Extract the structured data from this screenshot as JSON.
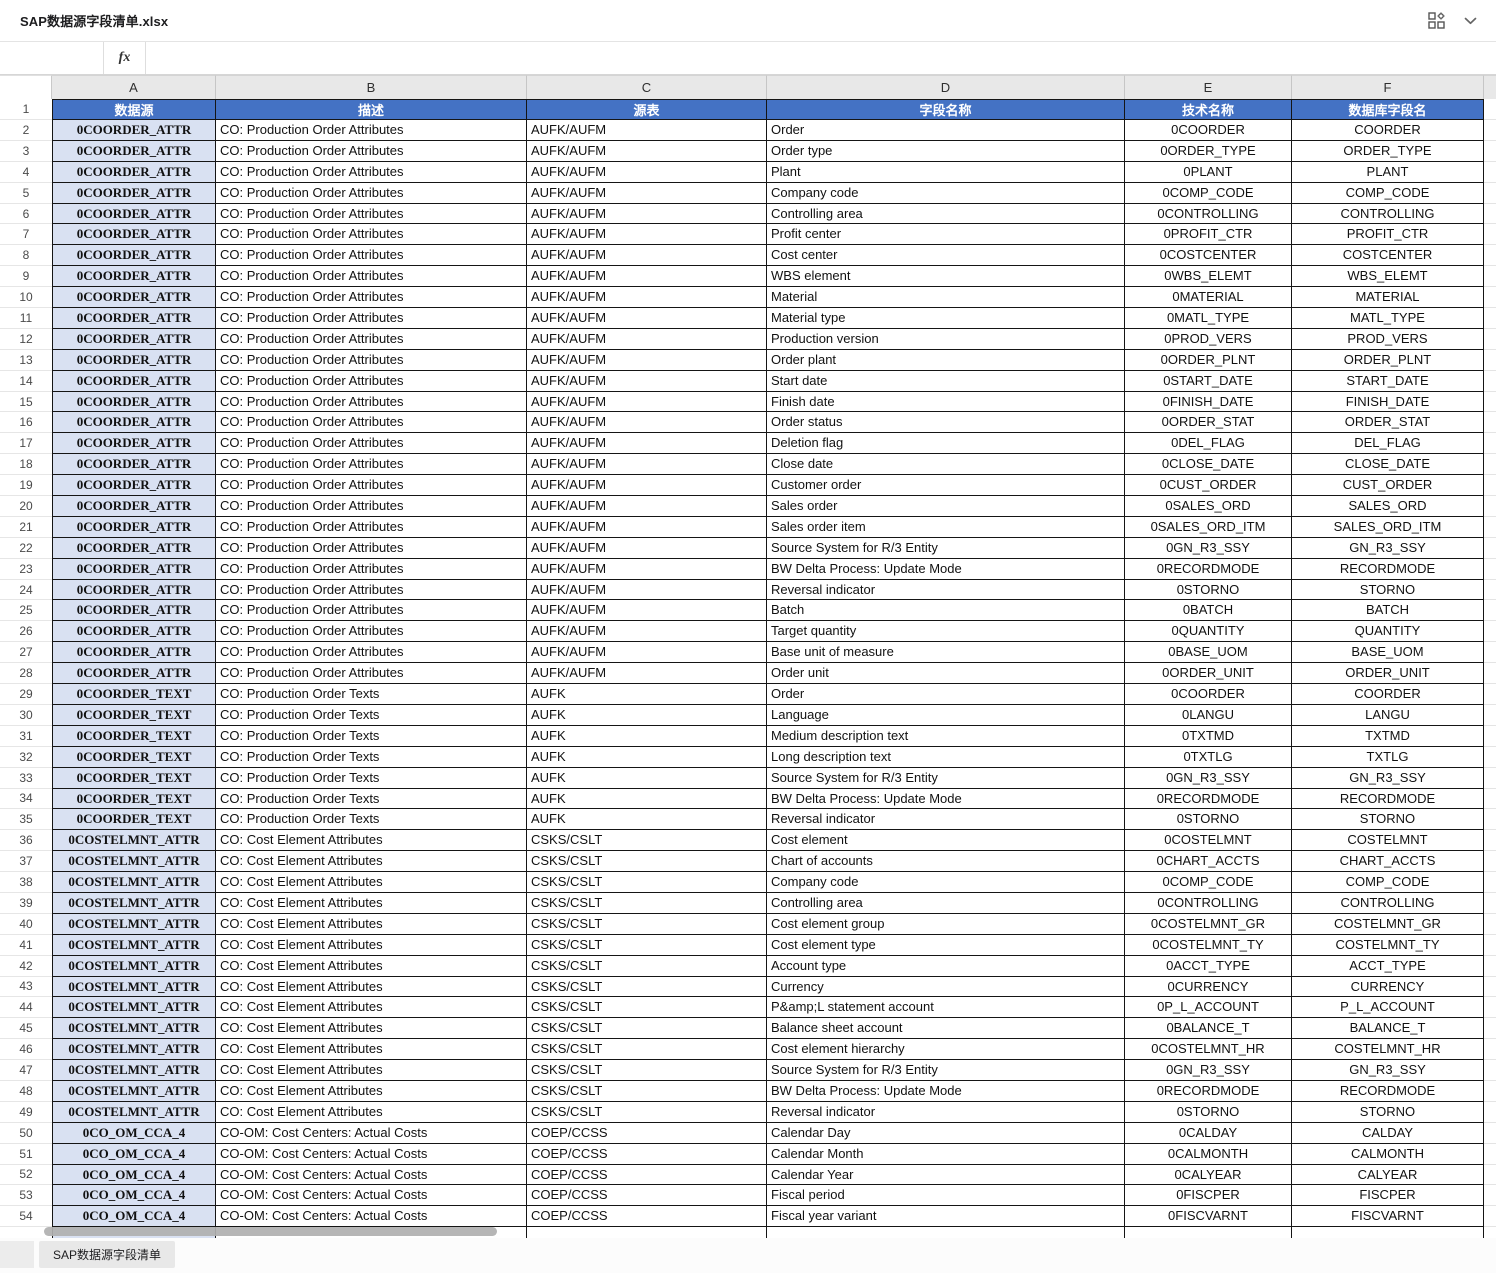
{
  "window": {
    "title": "SAP数据源字段清单.xlsx"
  },
  "formula_bar": {
    "fx_label": "fx",
    "name_box_value": "",
    "input_value": ""
  },
  "icons": {
    "top_right": [
      "grid-view-icon",
      "chevron-down-icon"
    ]
  },
  "sheet_tab": {
    "label": "SAP数据源字段清单"
  },
  "columns": [
    "A",
    "B",
    "C",
    "D",
    "E",
    "F"
  ],
  "header_row": [
    "数据源",
    "描述",
    "源表",
    "字段名称",
    "技术名称",
    "数据库字段名"
  ],
  "colors": {
    "header_bg": "#4472C4",
    "header_text": "#ffffff",
    "key_column_bg": "#D9E1F2",
    "grid_border": "#151515"
  },
  "rows": [
    [
      "0COORDER_ATTR",
      "CO: Production Order Attributes",
      "AUFK/AUFM",
      "Order",
      "0COORDER",
      "COORDER"
    ],
    [
      "0COORDER_ATTR",
      "CO: Production Order Attributes",
      "AUFK/AUFM",
      "Order type",
      "0ORDER_TYPE",
      "ORDER_TYPE"
    ],
    [
      "0COORDER_ATTR",
      "CO: Production Order Attributes",
      "AUFK/AUFM",
      "Plant",
      "0PLANT",
      "PLANT"
    ],
    [
      "0COORDER_ATTR",
      "CO: Production Order Attributes",
      "AUFK/AUFM",
      "Company code",
      "0COMP_CODE",
      "COMP_CODE"
    ],
    [
      "0COORDER_ATTR",
      "CO: Production Order Attributes",
      "AUFK/AUFM",
      "Controlling area",
      "0CONTROLLING",
      "CONTROLLING"
    ],
    [
      "0COORDER_ATTR",
      "CO: Production Order Attributes",
      "AUFK/AUFM",
      "Profit center",
      "0PROFIT_CTR",
      "PROFIT_CTR"
    ],
    [
      "0COORDER_ATTR",
      "CO: Production Order Attributes",
      "AUFK/AUFM",
      "Cost center",
      "0COSTCENTER",
      "COSTCENTER"
    ],
    [
      "0COORDER_ATTR",
      "CO: Production Order Attributes",
      "AUFK/AUFM",
      "WBS element",
      "0WBS_ELEMT",
      "WBS_ELEMT"
    ],
    [
      "0COORDER_ATTR",
      "CO: Production Order Attributes",
      "AUFK/AUFM",
      "Material",
      "0MATERIAL",
      "MATERIAL"
    ],
    [
      "0COORDER_ATTR",
      "CO: Production Order Attributes",
      "AUFK/AUFM",
      "Material type",
      "0MATL_TYPE",
      "MATL_TYPE"
    ],
    [
      "0COORDER_ATTR",
      "CO: Production Order Attributes",
      "AUFK/AUFM",
      "Production version",
      "0PROD_VERS",
      "PROD_VERS"
    ],
    [
      "0COORDER_ATTR",
      "CO: Production Order Attributes",
      "AUFK/AUFM",
      "Order plant",
      "0ORDER_PLNT",
      "ORDER_PLNT"
    ],
    [
      "0COORDER_ATTR",
      "CO: Production Order Attributes",
      "AUFK/AUFM",
      "Start date",
      "0START_DATE",
      "START_DATE"
    ],
    [
      "0COORDER_ATTR",
      "CO: Production Order Attributes",
      "AUFK/AUFM",
      "Finish date",
      "0FINISH_DATE",
      "FINISH_DATE"
    ],
    [
      "0COORDER_ATTR",
      "CO: Production Order Attributes",
      "AUFK/AUFM",
      "Order status",
      "0ORDER_STAT",
      "ORDER_STAT"
    ],
    [
      "0COORDER_ATTR",
      "CO: Production Order Attributes",
      "AUFK/AUFM",
      "Deletion flag",
      "0DEL_FLAG",
      "DEL_FLAG"
    ],
    [
      "0COORDER_ATTR",
      "CO: Production Order Attributes",
      "AUFK/AUFM",
      "Close date",
      "0CLOSE_DATE",
      "CLOSE_DATE"
    ],
    [
      "0COORDER_ATTR",
      "CO: Production Order Attributes",
      "AUFK/AUFM",
      "Customer order",
      "0CUST_ORDER",
      "CUST_ORDER"
    ],
    [
      "0COORDER_ATTR",
      "CO: Production Order Attributes",
      "AUFK/AUFM",
      "Sales order",
      "0SALES_ORD",
      "SALES_ORD"
    ],
    [
      "0COORDER_ATTR",
      "CO: Production Order Attributes",
      "AUFK/AUFM",
      "Sales order item",
      "0SALES_ORD_ITM",
      "SALES_ORD_ITM"
    ],
    [
      "0COORDER_ATTR",
      "CO: Production Order Attributes",
      "AUFK/AUFM",
      "Source System for R/3 Entity",
      "0GN_R3_SSY",
      "GN_R3_SSY"
    ],
    [
      "0COORDER_ATTR",
      "CO: Production Order Attributes",
      "AUFK/AUFM",
      "BW Delta Process: Update Mode",
      "0RECORDMODE",
      "RECORDMODE"
    ],
    [
      "0COORDER_ATTR",
      "CO: Production Order Attributes",
      "AUFK/AUFM",
      "Reversal indicator",
      "0STORNO",
      "STORNO"
    ],
    [
      "0COORDER_ATTR",
      "CO: Production Order Attributes",
      "AUFK/AUFM",
      "Batch",
      "0BATCH",
      "BATCH"
    ],
    [
      "0COORDER_ATTR",
      "CO: Production Order Attributes",
      "AUFK/AUFM",
      "Target quantity",
      "0QUANTITY",
      "QUANTITY"
    ],
    [
      "0COORDER_ATTR",
      "CO: Production Order Attributes",
      "AUFK/AUFM",
      "Base unit of measure",
      "0BASE_UOM",
      "BASE_UOM"
    ],
    [
      "0COORDER_ATTR",
      "CO: Production Order Attributes",
      "AUFK/AUFM",
      "Order unit",
      "0ORDER_UNIT",
      "ORDER_UNIT"
    ],
    [
      "0COORDER_TEXT",
      "CO: Production Order Texts",
      "AUFK",
      "Order",
      "0COORDER",
      "COORDER"
    ],
    [
      "0COORDER_TEXT",
      "CO: Production Order Texts",
      "AUFK",
      "Language",
      "0LANGU",
      "LANGU"
    ],
    [
      "0COORDER_TEXT",
      "CO: Production Order Texts",
      "AUFK",
      "Medium description text",
      "0TXTMD",
      "TXTMD"
    ],
    [
      "0COORDER_TEXT",
      "CO: Production Order Texts",
      "AUFK",
      "Long description text",
      "0TXTLG",
      "TXTLG"
    ],
    [
      "0COORDER_TEXT",
      "CO: Production Order Texts",
      "AUFK",
      "Source System for R/3 Entity",
      "0GN_R3_SSY",
      "GN_R3_SSY"
    ],
    [
      "0COORDER_TEXT",
      "CO: Production Order Texts",
      "AUFK",
      "BW Delta Process: Update Mode",
      "0RECORDMODE",
      "RECORDMODE"
    ],
    [
      "0COORDER_TEXT",
      "CO: Production Order Texts",
      "AUFK",
      "Reversal indicator",
      "0STORNO",
      "STORNO"
    ],
    [
      "0COSTELMNT_ATTR",
      "CO: Cost Element Attributes",
      "CSKS/CSLT",
      "Cost element",
      "0COSTELMNT",
      "COSTELMNT"
    ],
    [
      "0COSTELMNT_ATTR",
      "CO: Cost Element Attributes",
      "CSKS/CSLT",
      "Chart of accounts",
      "0CHART_ACCTS",
      "CHART_ACCTS"
    ],
    [
      "0COSTELMNT_ATTR",
      "CO: Cost Element Attributes",
      "CSKS/CSLT",
      "Company code",
      "0COMP_CODE",
      "COMP_CODE"
    ],
    [
      "0COSTELMNT_ATTR",
      "CO: Cost Element Attributes",
      "CSKS/CSLT",
      "Controlling area",
      "0CONTROLLING",
      "CONTROLLING"
    ],
    [
      "0COSTELMNT_ATTR",
      "CO: Cost Element Attributes",
      "CSKS/CSLT",
      "Cost element group",
      "0COSTELMNT_GR",
      "COSTELMNT_GR"
    ],
    [
      "0COSTELMNT_ATTR",
      "CO: Cost Element Attributes",
      "CSKS/CSLT",
      "Cost element type",
      "0COSTELMNT_TY",
      "COSTELMNT_TY"
    ],
    [
      "0COSTELMNT_ATTR",
      "CO: Cost Element Attributes",
      "CSKS/CSLT",
      "Account type",
      "0ACCT_TYPE",
      "ACCT_TYPE"
    ],
    [
      "0COSTELMNT_ATTR",
      "CO: Cost Element Attributes",
      "CSKS/CSLT",
      "Currency",
      "0CURRENCY",
      "CURRENCY"
    ],
    [
      "0COSTELMNT_ATTR",
      "CO: Cost Element Attributes",
      "CSKS/CSLT",
      "P&amp;L statement account",
      "0P_L_ACCOUNT",
      "P_L_ACCOUNT"
    ],
    [
      "0COSTELMNT_ATTR",
      "CO: Cost Element Attributes",
      "CSKS/CSLT",
      "Balance sheet account",
      "0BALANCE_T",
      "BALANCE_T"
    ],
    [
      "0COSTELMNT_ATTR",
      "CO: Cost Element Attributes",
      "CSKS/CSLT",
      "Cost element hierarchy",
      "0COSTELMNT_HR",
      "COSTELMNT_HR"
    ],
    [
      "0COSTELMNT_ATTR",
      "CO: Cost Element Attributes",
      "CSKS/CSLT",
      "Source System for R/3 Entity",
      "0GN_R3_SSY",
      "GN_R3_SSY"
    ],
    [
      "0COSTELMNT_ATTR",
      "CO: Cost Element Attributes",
      "CSKS/CSLT",
      "BW Delta Process: Update Mode",
      "0RECORDMODE",
      "RECORDMODE"
    ],
    [
      "0COSTELMNT_ATTR",
      "CO: Cost Element Attributes",
      "CSKS/CSLT",
      "Reversal indicator",
      "0STORNO",
      "STORNO"
    ],
    [
      "0CO_OM_CCA_4",
      "CO-OM: Cost Centers: Actual Costs",
      "COEP/CCSS",
      "Calendar Day",
      "0CALDAY",
      "CALDAY"
    ],
    [
      "0CO_OM_CCA_4",
      "CO-OM: Cost Centers: Actual Costs",
      "COEP/CCSS",
      "Calendar Month",
      "0CALMONTH",
      "CALMONTH"
    ],
    [
      "0CO_OM_CCA_4",
      "CO-OM: Cost Centers: Actual Costs",
      "COEP/CCSS",
      "Calendar Year",
      "0CALYEAR",
      "CALYEAR"
    ],
    [
      "0CO_OM_CCA_4",
      "CO-OM: Cost Centers: Actual Costs",
      "COEP/CCSS",
      "Fiscal period",
      "0FISCPER",
      "FISCPER"
    ],
    [
      "0CO_OM_CCA_4",
      "CO-OM: Cost Centers: Actual Costs",
      "COEP/CCSS",
      "Fiscal year variant",
      "0FISCVARNT",
      "FISCVARNT"
    ]
  ]
}
